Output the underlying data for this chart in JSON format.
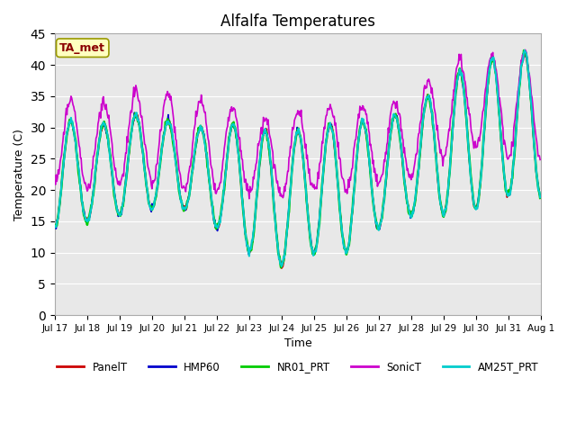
{
  "title": "Alfalfa Temperatures",
  "xlabel": "Time",
  "ylabel": "Temperature (C)",
  "ylim": [
    0,
    45
  ],
  "yticks": [
    0,
    5,
    10,
    15,
    20,
    25,
    30,
    35,
    40,
    45
  ],
  "annotation_text": "TA_met",
  "annotation_color": "#8B0000",
  "annotation_bg": "#FFFFC0",
  "bg_color": "#E8E8E8",
  "lines": {
    "PanelT": {
      "color": "#CC0000",
      "lw": 1.2,
      "zorder": 3
    },
    "HMP60": {
      "color": "#0000CC",
      "lw": 1.2,
      "zorder": 4
    },
    "NR01_PRT": {
      "color": "#00CC00",
      "lw": 1.8,
      "zorder": 5
    },
    "SonicT": {
      "color": "#CC00CC",
      "lw": 1.2,
      "zorder": 6
    },
    "AM25T_PRT": {
      "color": "#00CCCC",
      "lw": 1.5,
      "zorder": 7
    }
  },
  "legend_labels": [
    "PanelT",
    "HMP60",
    "NR01_PRT",
    "SonicT",
    "AM25T_PRT"
  ],
  "legend_colors": [
    "#CC0000",
    "#0000CC",
    "#00CC00",
    "#CC00CC",
    "#00CCCC"
  ],
  "x_tick_labels": [
    "Jul 17",
    "Jul 18",
    "Jul 19",
    "Jul 20",
    "Jul 21",
    "Jul 22",
    "Jul 23",
    "Jul 24",
    "Jul 25",
    "Jul 26",
    "Jul 27",
    "Jul 28",
    "Jul 29",
    "Jul 30",
    "Jul 31",
    "Aug 1"
  ],
  "num_days": 15,
  "pts_per_day": 48,
  "day_peaks": [
    33,
    29,
    32,
    32,
    30,
    30,
    31,
    28,
    31,
    30,
    32,
    32,
    38,
    40,
    42
  ],
  "day_mins": [
    14,
    15,
    16,
    17,
    17,
    14,
    10,
    8,
    10,
    10,
    14,
    16,
    16,
    17,
    19
  ],
  "sonic_day_peaks": [
    36,
    33,
    35,
    37,
    34,
    35,
    31,
    31,
    34,
    33,
    34,
    34,
    41,
    41,
    42
  ],
  "sonic_day_mins": [
    21,
    20,
    21,
    21,
    20,
    20,
    20,
    19,
    20,
    20,
    21,
    22,
    25,
    27,
    25
  ]
}
